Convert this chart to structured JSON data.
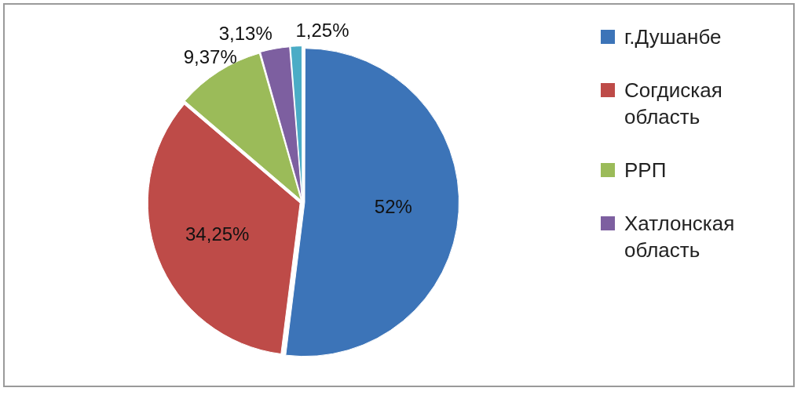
{
  "chart_data": {
    "type": "pie",
    "categories": [
      "г.Душанбе",
      "Согдиская область",
      "РРП",
      "Хатлонская область",
      null
    ],
    "values": [
      52,
      34.25,
      9.37,
      3.13,
      1.25
    ],
    "value_labels": [
      "52%",
      "34,25%",
      "9,37%",
      "3,13%",
      "1,25%"
    ],
    "colors": [
      "#3c74b8",
      "#be4b48",
      "#9bbb59",
      "#7d5fa0",
      "#4bacc6"
    ],
    "legend": "right"
  }
}
